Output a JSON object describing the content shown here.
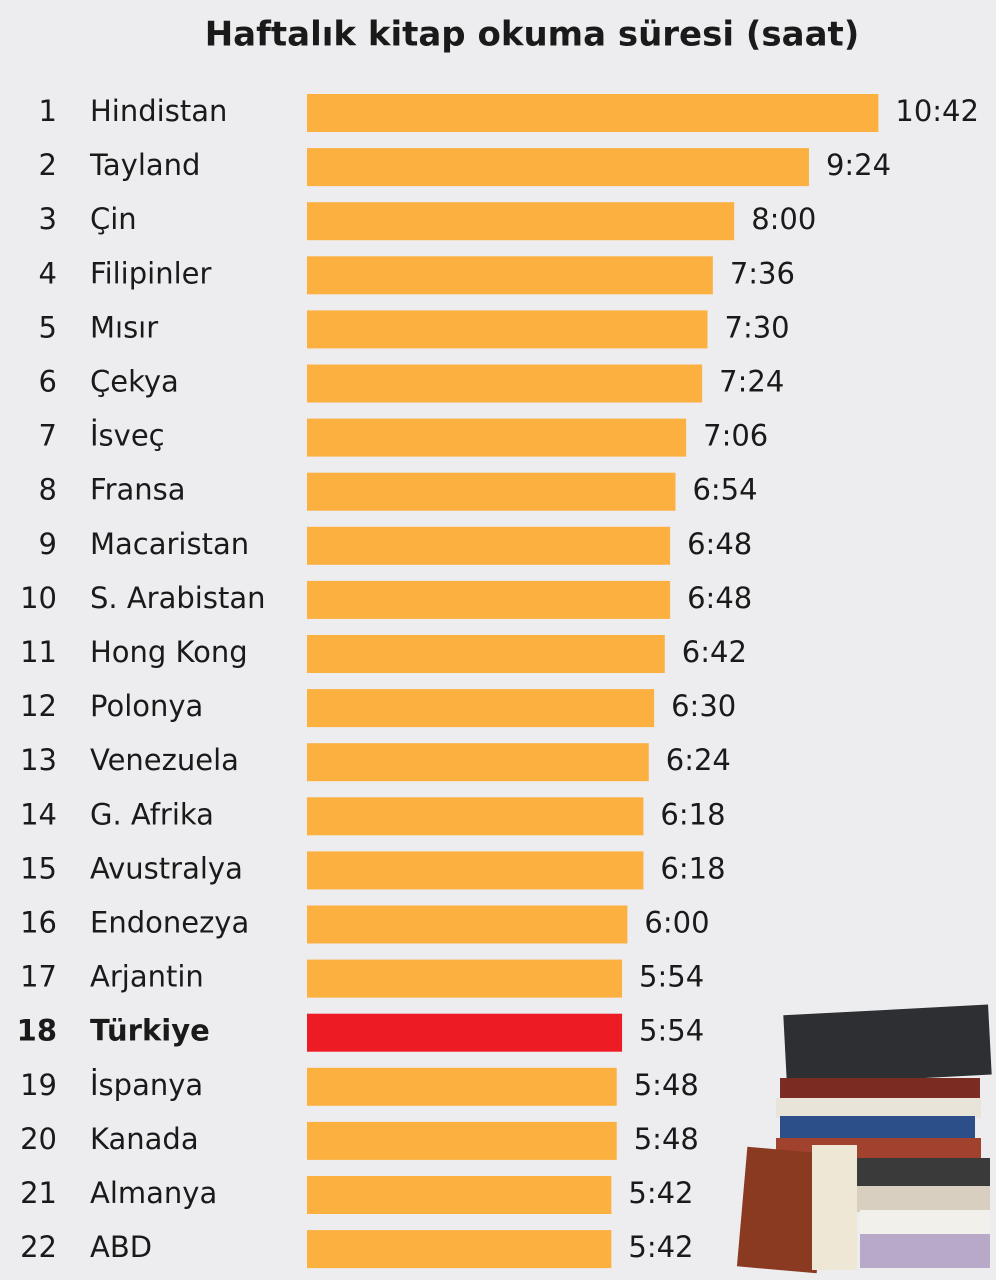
{
  "chart_data": {
    "type": "bar",
    "orientation": "horizontal",
    "title": "Haftalık kitap okuma süresi (saat)",
    "ranks": [
      "1",
      "2",
      "3",
      "4",
      "5",
      "6",
      "7",
      "8",
      "9",
      "10",
      "11",
      "12",
      "13",
      "14",
      "15",
      "16",
      "17",
      "18",
      "19",
      "20",
      "21",
      "22"
    ],
    "categories": [
      "Hindistan",
      "Tayland",
      "Çin",
      "Filipinler",
      "Mısır",
      "Çekya",
      "İsveç",
      "Fransa",
      "Macaristan",
      "S. Arabistan",
      "Hong Kong",
      "Polonya",
      "Venezuela",
      "G. Afrika",
      "Avustralya",
      "Endonezya",
      "Arjantin",
      "Türkiye",
      "İspanya",
      "Kanada",
      "Almanya",
      "ABD"
    ],
    "values": [
      10.7,
      9.4,
      8,
      7.6,
      7.5,
      7.4,
      7.1,
      6.9,
      6.8,
      6.8,
      6.7,
      6.5,
      6.4,
      6.3,
      6.3,
      6,
      5.9,
      5.9,
      5.8,
      5.8,
      5.7,
      5.7
    ],
    "value_labels": [
      "10:42",
      "9:24",
      "8:00",
      "7:36",
      "7:30",
      "7:24",
      "7:06",
      "6:54",
      "6:48",
      "6:48",
      "6:42",
      "6:30",
      "6:24",
      "6:18",
      "6:18",
      "6:00",
      "5:54",
      "5:54",
      "5:48",
      "5:48",
      "5:42",
      "5:42"
    ],
    "color": "#fbb040",
    "highlight": {
      "index": 17,
      "color": "#ed1c24"
    }
  }
}
